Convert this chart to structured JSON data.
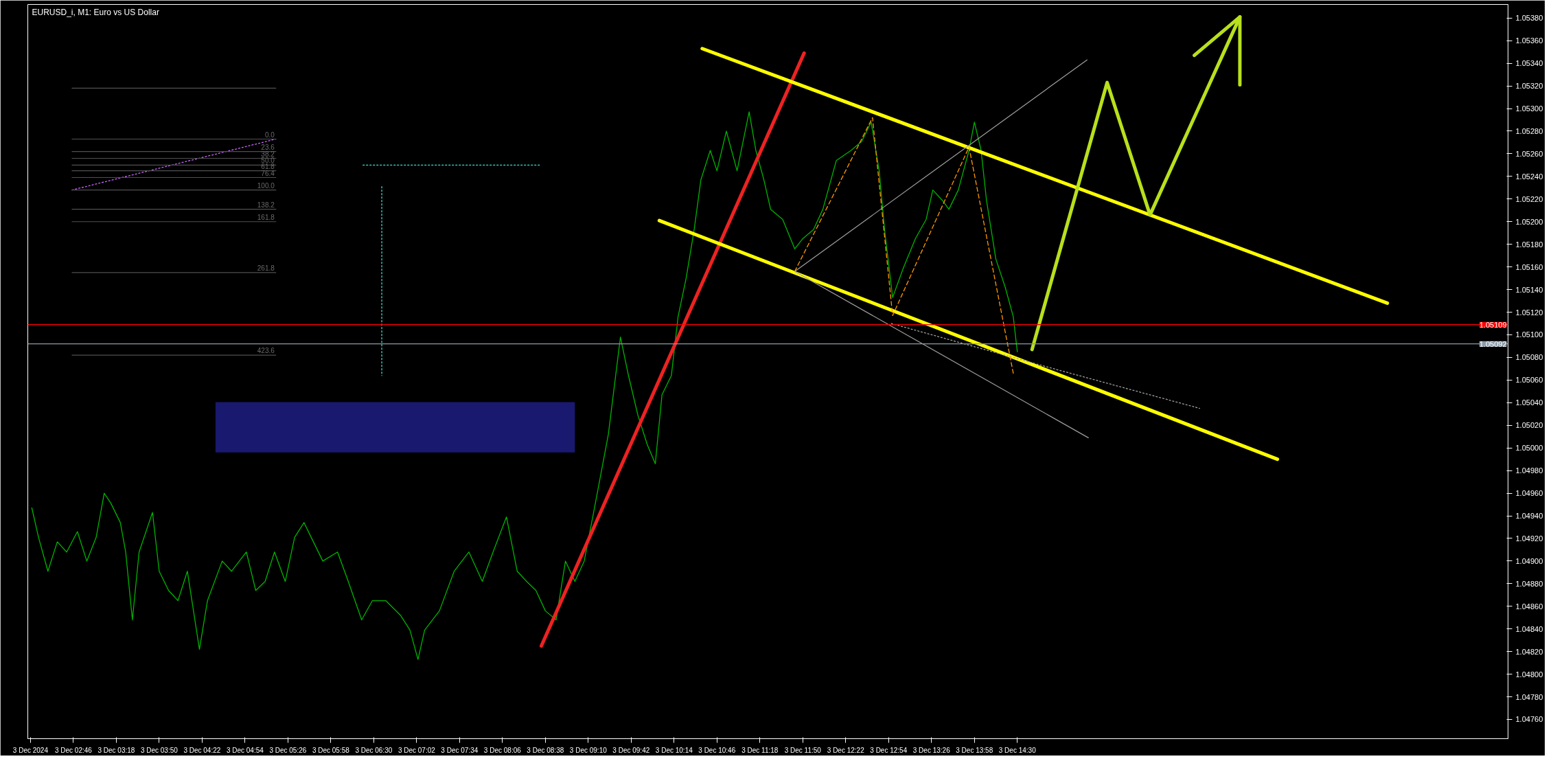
{
  "chart_data": {
    "type": "line",
    "title": "EURUSD_i, M1:  Euro vs US Dollar",
    "xlim": [
      "2024-12-03T02:12",
      "2024-12-03T20:36"
    ],
    "ylim": [
      1.04743,
      1.05392
    ],
    "grid": false,
    "xticks": [
      {
        "value": "2024-12-03T02:14",
        "label": "3 Dec 2024"
      },
      {
        "value": "2024-12-03T02:46",
        "label": "3 Dec 02:46"
      },
      {
        "value": "2024-12-03T03:18",
        "label": "3 Dec 03:18"
      },
      {
        "value": "2024-12-03T03:50",
        "label": "3 Dec 03:50"
      },
      {
        "value": "2024-12-03T04:22",
        "label": "3 Dec 04:22"
      },
      {
        "value": "2024-12-03T04:54",
        "label": "3 Dec 04:54"
      },
      {
        "value": "2024-12-03T05:26",
        "label": "3 Dec 05:26"
      },
      {
        "value": "2024-12-03T05:58",
        "label": "3 Dec 05:58"
      },
      {
        "value": "2024-12-03T06:30",
        "label": "3 Dec 06:30"
      },
      {
        "value": "2024-12-03T07:02",
        "label": "3 Dec 07:02"
      },
      {
        "value": "2024-12-03T07:34",
        "label": "3 Dec 07:34"
      },
      {
        "value": "2024-12-03T08:06",
        "label": "3 Dec 08:06"
      },
      {
        "value": "2024-12-03T08:38",
        "label": "3 Dec 08:38"
      },
      {
        "value": "2024-12-03T09:10",
        "label": "3 Dec 09:10"
      },
      {
        "value": "2024-12-03T09:42",
        "label": "3 Dec 09:42"
      },
      {
        "value": "2024-12-03T10:14",
        "label": "3 Dec 10:14"
      },
      {
        "value": "2024-12-03T10:46",
        "label": "3 Dec 10:46"
      },
      {
        "value": "2024-12-03T11:18",
        "label": "3 Dec 11:18"
      },
      {
        "value": "2024-12-03T11:50",
        "label": "3 Dec 11:50"
      },
      {
        "value": "2024-12-03T12:22",
        "label": "3 Dec 12:22"
      },
      {
        "value": "2024-12-03T12:54",
        "label": "3 Dec 12:54"
      },
      {
        "value": "2024-12-03T13:26",
        "label": "3 Dec 13:26"
      },
      {
        "value": "2024-12-03T13:58",
        "label": "3 Dec 13:58"
      },
      {
        "value": "2024-12-03T14:30",
        "label": "3 Dec 14:30"
      }
    ],
    "yticks": [
      {
        "value": 1.0476,
        "label": "1.04760"
      },
      {
        "value": 1.0478,
        "label": "1.04780"
      },
      {
        "value": 1.048,
        "label": "1.04800"
      },
      {
        "value": 1.0482,
        "label": "1.04820"
      },
      {
        "value": 1.0484,
        "label": "1.04840"
      },
      {
        "value": 1.0486,
        "label": "1.04860"
      },
      {
        "value": 1.0488,
        "label": "1.04880"
      },
      {
        "value": 1.049,
        "label": "1.04900"
      },
      {
        "value": 1.0492,
        "label": "1.04920"
      },
      {
        "value": 1.0494,
        "label": "1.04940"
      },
      {
        "value": 1.0496,
        "label": "1.04960"
      },
      {
        "value": 1.0498,
        "label": "1.04980"
      },
      {
        "value": 1.05,
        "label": "1.05000"
      },
      {
        "value": 1.0502,
        "label": "1.05020"
      },
      {
        "value": 1.0504,
        "label": "1.05040"
      },
      {
        "value": 1.0506,
        "label": "1.05060"
      },
      {
        "value": 1.0508,
        "label": "1.05080"
      },
      {
        "value": 1.051,
        "label": "1.05100"
      },
      {
        "value": 1.0512,
        "label": "1.05120"
      },
      {
        "value": 1.0514,
        "label": "1.05140"
      },
      {
        "value": 1.0516,
        "label": "1.05160"
      },
      {
        "value": 1.0518,
        "label": "1.05180"
      },
      {
        "value": 1.052,
        "label": "1.05200"
      },
      {
        "value": 1.0522,
        "label": "1.05220"
      },
      {
        "value": 1.0524,
        "label": "1.05240"
      },
      {
        "value": 1.0526,
        "label": "1.05260"
      },
      {
        "value": 1.0528,
        "label": "1.05280"
      },
      {
        "value": 1.053,
        "label": "1.05300"
      },
      {
        "value": 1.0532,
        "label": "1.05320"
      },
      {
        "value": 1.0534,
        "label": "1.05340"
      },
      {
        "value": 1.0536,
        "label": "1.05360"
      },
      {
        "value": 1.0538,
        "label": "1.05380"
      }
    ],
    "ref_lines": [
      {
        "axis": "y",
        "value": 1.05109,
        "label": "1.05109",
        "color": "#ff0000"
      },
      {
        "axis": "y",
        "value": 1.05092,
        "label": "1.05092",
        "color": "#8a9aa8"
      }
    ],
    "annotations": [
      {
        "text": "0.0",
        "x": "2024-12-03T05:16",
        "y": 1.05273
      },
      {
        "text": "23.6",
        "x": "2024-12-03T05:16",
        "y": 1.05262
      },
      {
        "text": "38.2",
        "x": "2024-12-03T05:16",
        "y": 1.05256
      },
      {
        "text": "50.0",
        "x": "2024-12-03T05:16",
        "y": 1.0525
      },
      {
        "text": "61.8",
        "x": "2024-12-03T05:16",
        "y": 1.05245
      },
      {
        "text": "76.4",
        "x": "2024-12-03T05:16",
        "y": 1.05239
      },
      {
        "text": "100.0",
        "x": "2024-12-03T05:16",
        "y": 1.05228
      },
      {
        "text": "138.2",
        "x": "2024-12-03T05:16",
        "y": 1.05211
      },
      {
        "text": "161.8",
        "x": "2024-12-03T05:16",
        "y": 1.052
      },
      {
        "text": "261.8",
        "x": "2024-12-03T05:16",
        "y": 1.05155
      },
      {
        "text": "423.6",
        "x": "2024-12-03T05:16",
        "y": 1.05082
      }
    ],
    "series": [
      {
        "color": "#00b400",
        "x": [
          "2024-12-03T02:15",
          "2024-12-03T02:20",
          "2024-12-03T02:27",
          "2024-12-03T02:34",
          "2024-12-03T02:41",
          "2024-12-03T02:49",
          "2024-12-03T02:56",
          "2024-12-03T03:03",
          "2024-12-03T03:09",
          "2024-12-03T03:14",
          "2024-12-03T03:21",
          "2024-12-03T03:25",
          "2024-12-03T03:30",
          "2024-12-03T03:35",
          "2024-12-03T03:45",
          "2024-12-03T03:50",
          "2024-12-03T03:57",
          "2024-12-03T04:04",
          "2024-12-03T04:11",
          "2024-12-03T04:20",
          "2024-12-03T04:26",
          "2024-12-03T04:37",
          "2024-12-03T04:44",
          "2024-12-03T04:55",
          "2024-12-03T05:02",
          "2024-12-03T05:09",
          "2024-12-03T05:16",
          "2024-12-03T05:24",
          "2024-12-03T05:31",
          "2024-12-03T05:38",
          "2024-12-03T05:45",
          "2024-12-03T05:52",
          "2024-12-03T06:03",
          "2024-12-03T06:11",
          "2024-12-03T06:21",
          "2024-12-03T06:29",
          "2024-12-03T06:39",
          "2024-12-03T06:50",
          "2024-12-03T06:57",
          "2024-12-03T07:03",
          "2024-12-03T07:08",
          "2024-12-03T07:19",
          "2024-12-03T07:30",
          "2024-12-03T07:41",
          "2024-12-03T07:51",
          "2024-12-03T07:59",
          "2024-12-03T08:09",
          "2024-12-03T08:17",
          "2024-12-03T08:24",
          "2024-12-03T08:31",
          "2024-12-03T08:38",
          "2024-12-03T08:46",
          "2024-12-03T08:53",
          "2024-12-03T09:00",
          "2024-12-03T09:07",
          "2024-12-03T09:14",
          "2024-12-03T09:25",
          "2024-12-03T09:34",
          "2024-12-03T09:40",
          "2024-12-03T09:47",
          "2024-12-03T09:54",
          "2024-12-03T10:00",
          "2024-12-03T10:05",
          "2024-12-03T10:12",
          "2024-12-03T10:17",
          "2024-12-03T10:23",
          "2024-12-03T10:29",
          "2024-12-03T10:34",
          "2024-12-03T10:41",
          "2024-12-03T10:46",
          "2024-12-03T10:53",
          "2024-12-03T11:01",
          "2024-12-03T11:10",
          "2024-12-03T11:15",
          "2024-12-03T11:21",
          "2024-12-03T11:26",
          "2024-12-03T11:35",
          "2024-12-03T11:44",
          "2024-12-03T11:50",
          "2024-12-03T11:58",
          "2024-12-03T12:05",
          "2024-12-03T12:15",
          "2024-12-03T12:26",
          "2024-12-03T12:34",
          "2024-12-03T12:41",
          "2024-12-03T12:47",
          "2024-12-03T12:51",
          "2024-12-03T12:57",
          "2024-12-03T13:05",
          "2024-12-03T13:14",
          "2024-12-03T13:22",
          "2024-12-03T13:27",
          "2024-12-03T13:34",
          "2024-12-03T13:39",
          "2024-12-03T13:46",
          "2024-12-03T13:54",
          "2024-12-03T13:58",
          "2024-12-03T14:03",
          "2024-12-03T14:07",
          "2024-12-03T14:14",
          "2024-12-03T14:21",
          "2024-12-03T14:27",
          "2024-12-03T14:30"
        ],
        "values": [
          1.04947,
          1.04921,
          1.04891,
          1.04917,
          1.04908,
          1.04926,
          1.049,
          1.04921,
          1.0496,
          1.04951,
          1.04934,
          1.04908,
          1.04848,
          1.04908,
          1.04943,
          1.04891,
          1.04874,
          1.04865,
          1.04891,
          1.04822,
          1.04865,
          1.049,
          1.04891,
          1.04908,
          1.04874,
          1.04882,
          1.04908,
          1.04882,
          1.04921,
          1.04934,
          1.04917,
          1.049,
          1.04908,
          1.04882,
          1.04848,
          1.04865,
          1.04865,
          1.04852,
          1.04839,
          1.04813,
          1.04839,
          1.04856,
          1.04891,
          1.04908,
          1.04882,
          1.04908,
          1.04939,
          1.04891,
          1.04882,
          1.04874,
          1.04856,
          1.04848,
          1.049,
          1.04882,
          1.049,
          1.04943,
          1.05012,
          1.05098,
          1.05064,
          1.05029,
          1.05003,
          1.04986,
          1.05047,
          1.05064,
          1.05116,
          1.0515,
          1.05193,
          1.05237,
          1.05263,
          1.05245,
          1.0528,
          1.05245,
          1.05297,
          1.05263,
          1.05237,
          1.05211,
          1.05202,
          1.05176,
          1.05185,
          1.05193,
          1.05211,
          1.05254,
          1.05263,
          1.05271,
          1.05288,
          1.05245,
          1.05193,
          1.05133,
          1.05159,
          1.05185,
          1.05202,
          1.05228,
          1.05219,
          1.05211,
          1.05228,
          1.05263,
          1.05288,
          1.05263,
          1.05219,
          1.05167,
          1.05142,
          1.05116,
          1.05085
        ]
      },
      {
        "color": "#ee2222",
        "x": [
          "2024-12-03T08:35",
          "2024-12-03T11:51"
        ],
        "values": [
          1.04825,
          1.05349
        ]
      },
      {
        "color": "#ffff00",
        "x": [
          "2024-12-03T10:35",
          "2024-12-03T19:06"
        ],
        "values": [
          1.05353,
          1.05128
        ]
      },
      {
        "color": "#ffff00",
        "x": [
          "2024-12-03T10:03",
          "2024-12-03T17:44"
        ],
        "values": [
          1.05201,
          1.0499
        ]
      },
      {
        "color": "#b8e01c",
        "x": [
          "2024-12-03T14:41",
          "2024-12-03T15:37",
          "2024-12-03T16:09",
          "2024-12-03T17:16"
        ],
        "values": [
          1.05087,
          1.05323,
          1.05206,
          1.05381
        ]
      },
      {
        "color": "#b8e01c",
        "x": [
          "2024-12-03T16:42",
          "2024-12-03T17:16",
          "2024-12-03T17:16"
        ],
        "values": [
          1.05347,
          1.05381,
          1.05321
        ]
      },
      {
        "color": "#a0a0a0",
        "x": [
          "2024-12-03T11:44",
          "2024-12-03T15:22"
        ],
        "values": [
          1.05156,
          1.05343
        ]
      },
      {
        "color": "#a0a0a0",
        "x": [
          "2024-12-03T11:44",
          "2024-12-03T15:23"
        ],
        "values": [
          1.05156,
          1.05009
        ]
      },
      {
        "color": "#a0a0a0",
        "line_style": "dotted",
        "x": [
          "2024-12-03T12:56",
          "2024-12-03T14:51",
          "2024-12-03T16:46"
        ],
        "values": [
          1.0511,
          1.05072,
          1.05035
        ]
      },
      {
        "color": "#ff9900",
        "line_style": "dashed",
        "x": [
          "2024-12-03T11:44",
          "2024-12-03T12:42",
          "2024-12-03T12:57",
          "2024-12-03T13:54",
          "2024-12-03T14:27"
        ],
        "values": [
          1.05156,
          1.05292,
          1.05117,
          1.05266,
          1.05066
        ]
      },
      {
        "color": "#191970",
        "x": [
          "2024-12-03T04:32",
          "2024-12-03T09:00"
        ],
        "values": [
          1.0504,
          1.0504
        ],
        "lower": [
          1.04996,
          1.04996
        ],
        "upper": [
          1.0504,
          1.0504
        ]
      },
      {
        "color": "#40e0d0",
        "line_style": "dotted",
        "x": [
          "2024-12-03T06:22",
          "2024-12-03T08:35"
        ],
        "values": [
          1.0525,
          1.0525
        ]
      },
      {
        "color": "#40e0d0",
        "line_style": "dotted",
        "x": [
          "2024-12-03T06:36",
          "2024-12-03T06:36"
        ],
        "values": [
          1.05231,
          1.05064
        ]
      },
      {
        "color": "#cc66ff",
        "line_style": "dotted",
        "x": [
          "2024-12-03T02:45",
          "2024-12-03T05:17"
        ],
        "values": [
          1.05228,
          1.05273
        ]
      },
      {
        "color": "#505050",
        "x": [
          "2024-12-03T02:45",
          "2024-12-03T05:17"
        ],
        "values": [
          1.05318,
          1.05318
        ]
      },
      {
        "color": "#505050",
        "x": [
          "2024-12-03T02:45",
          "2024-12-03T05:17"
        ],
        "values": [
          1.05273,
          1.05273
        ]
      },
      {
        "color": "#505050",
        "x": [
          "2024-12-03T02:45",
          "2024-12-03T05:17"
        ],
        "values": [
          1.05262,
          1.05262
        ]
      },
      {
        "color": "#505050",
        "x": [
          "2024-12-03T02:45",
          "2024-12-03T05:17"
        ],
        "values": [
          1.05256,
          1.05256
        ]
      },
      {
        "color": "#505050",
        "x": [
          "2024-12-03T02:45",
          "2024-12-03T05:17"
        ],
        "values": [
          1.0525,
          1.0525
        ]
      },
      {
        "color": "#505050",
        "x": [
          "2024-12-03T02:45",
          "2024-12-03T05:17"
        ],
        "values": [
          1.05245,
          1.05245
        ]
      },
      {
        "color": "#505050",
        "x": [
          "2024-12-03T02:45",
          "2024-12-03T05:17"
        ],
        "values": [
          1.05239,
          1.05239
        ]
      },
      {
        "color": "#505050",
        "x": [
          "2024-12-03T02:45",
          "2024-12-03T05:17"
        ],
        "values": [
          1.05228,
          1.05228
        ]
      },
      {
        "color": "#505050",
        "x": [
          "2024-12-03T02:45",
          "2024-12-03T05:17"
        ],
        "values": [
          1.05211,
          1.05211
        ]
      },
      {
        "color": "#505050",
        "x": [
          "2024-12-03T02:45",
          "2024-12-03T05:17"
        ],
        "values": [
          1.052,
          1.052
        ]
      },
      {
        "color": "#505050",
        "x": [
          "2024-12-03T02:45",
          "2024-12-03T05:17"
        ],
        "values": [
          1.05155,
          1.05155
        ]
      },
      {
        "color": "#505050",
        "x": [
          "2024-12-03T02:45",
          "2024-12-03T05:17"
        ],
        "values": [
          1.05082,
          1.05082
        ]
      }
    ]
  }
}
